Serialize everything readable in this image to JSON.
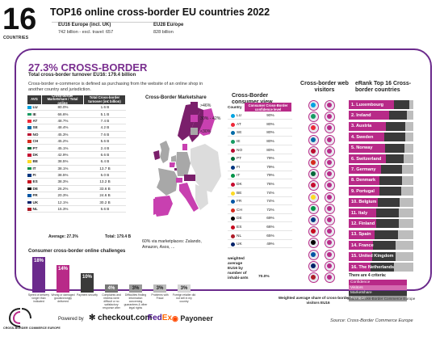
{
  "header": {
    "big_number": "16",
    "countries_label": "COUNTRIES",
    "title": "TOP16 online cross-border EU countries 2022",
    "eu16_label": "EU16 Europe (incl. UK)",
    "eu16_value": "742 billion - excl. travel: 657",
    "eu28_label": "EU28 Europe",
    "eu28_value": "828 billion"
  },
  "summary": {
    "title": "27.3% CROSS-BORDER",
    "subtitle": "Total cross-border turnover EU16:   179.4 billion",
    "description": "Cross-border e-commerce is defined as purchasing from the website of an online shop in another country and jurisdiction."
  },
  "turnover_table": {
    "col_country": "AVG",
    "col_share": "Cross-border Marketshare / Total online",
    "col_turnover": "Total Cross-border turnover (in€ billion)",
    "rows": [
      {
        "country": "LU",
        "share": "80.0%",
        "turnover": "1.6 B",
        "color": "#00a3e0"
      },
      {
        "country": "IE",
        "share": "66.6%",
        "turnover": "5.1 B",
        "color": "#169b62"
      },
      {
        "country": "AT",
        "share": "48.7%",
        "turnover": "7.4 B",
        "color": "#ed2939"
      },
      {
        "country": "SE",
        "share": "48.4%",
        "turnover": "4.2 B",
        "color": "#006aa7"
      },
      {
        "country": "NO",
        "share": "45.3%",
        "turnover": "7.6 B",
        "color": "#ba0c2f"
      },
      {
        "country": "CH",
        "share": "45.2%",
        "turnover": "5.6 B",
        "color": "#d52b1e"
      },
      {
        "country": "PT",
        "share": "45.1%",
        "turnover": "2.4 B",
        "color": "#046a38"
      },
      {
        "country": "DK",
        "share": "42.9%",
        "turnover": "6.6 B",
        "color": "#c60c30"
      },
      {
        "country": "BE",
        "share": "38.5%",
        "turnover": "6.4 B",
        "color": "#fdda24"
      },
      {
        "country": "IT",
        "share": "38.1%",
        "turnover": "13.7 B",
        "color": "#009246"
      },
      {
        "country": "FI",
        "share": "38.5%",
        "turnover": "5.0 B",
        "color": "#003580"
      },
      {
        "country": "ES",
        "share": "38.3%",
        "turnover": "13.2 B",
        "color": "#c60b1e"
      },
      {
        "country": "DE",
        "share": "26.2%",
        "turnover": "33.6 B",
        "color": "#000000"
      },
      {
        "country": "FR",
        "share": "20.3%",
        "turnover": "24.6 B",
        "color": "#0055a4"
      },
      {
        "country": "UK",
        "share": "12.1%",
        "turnover": "30.2 B",
        "color": "#012169"
      },
      {
        "country": "NL",
        "share": "15.3%",
        "turnover": "5.6 B",
        "color": "#ae1c28"
      }
    ],
    "average": "Average: 27.3%",
    "total": "Total:   179.4 B"
  },
  "map": {
    "title": "Cross-Border Marketshare",
    "legend": [
      {
        "label": ">46%",
        "color": "#7a1f6b"
      },
      {
        "label": "30% - 42%",
        "color": "#c840b0"
      },
      {
        "label": "<30%",
        "color": "#a8a8a8"
      }
    ],
    "note": "60% via marketplaces: Zalando, Amazon, Asos, ..."
  },
  "consumer_view": {
    "title": "Cross-Border consumer view",
    "col_country": "Country",
    "col_value": "Consumer Cross-Border confidence level",
    "rows": [
      {
        "country": "LU",
        "value": "90%",
        "color": "#00a3e0"
      },
      {
        "country": "AT",
        "value": "80%",
        "color": "#ed2939"
      },
      {
        "country": "SE",
        "value": "80%",
        "color": "#006aa7"
      },
      {
        "country": "IE",
        "value": "80%",
        "color": "#169b62"
      },
      {
        "country": "NO",
        "value": "80%",
        "color": "#ba0c2f"
      },
      {
        "country": "PT",
        "value": "79%",
        "color": "#046a38"
      },
      {
        "country": "FI",
        "value": "79%",
        "color": "#003580"
      },
      {
        "country": "IT",
        "value": "79%",
        "color": "#009246"
      },
      {
        "country": "DK",
        "value": "76%",
        "color": "#c60c30"
      },
      {
        "country": "BE",
        "value": "74%",
        "color": "#fdda24"
      },
      {
        "country": "FR",
        "value": "74%",
        "color": "#0055a4"
      },
      {
        "country": "CH",
        "value": "72%",
        "color": "#d52b1e"
      },
      {
        "country": "DE",
        "value": "69%",
        "color": "#000000"
      },
      {
        "country": "ES",
        "value": "66%",
        "color": "#c60b1e"
      },
      {
        "country": "NL",
        "value": "65%",
        "color": "#ae1c28"
      },
      {
        "country": "UK",
        "value": "49%",
        "color": "#012169"
      }
    ],
    "weighted_label": "weighted average EU16 by number of inhabi-ants",
    "weighted_value": "70.0%"
  },
  "visitors": {
    "title": "Cross-border web visitors",
    "note": "Weighted average share of cross-border web visitors EU16",
    "dots": [
      {
        "color": "#00a3e0"
      },
      {
        "color": "#b82a88"
      },
      {
        "color": "#169b62"
      },
      {
        "color": "#b82a88"
      },
      {
        "color": "#ed2939"
      },
      {
        "color": "#b82a88"
      },
      {
        "color": "#006aa7"
      },
      {
        "color": "#b82a88"
      },
      {
        "color": "#ba0c2f"
      },
      {
        "color": "#b82a88"
      },
      {
        "color": "#d52b1e"
      },
      {
        "color": "#b82a88"
      },
      {
        "color": "#046a38"
      },
      {
        "color": "#b82a88"
      },
      {
        "color": "#c60c30"
      },
      {
        "color": "#b82a88"
      },
      {
        "color": "#fdda24"
      },
      {
        "color": "#b82a88"
      },
      {
        "color": "#009246"
      },
      {
        "color": "#b82a88"
      },
      {
        "color": "#003580"
      },
      {
        "color": "#b82a88"
      },
      {
        "color": "#c60b1e"
      },
      {
        "color": "#b82a88"
      },
      {
        "color": "#000000"
      },
      {
        "color": "#b82a88"
      },
      {
        "color": "#0055a4"
      },
      {
        "color": "#b82a88"
      },
      {
        "color": "#012169"
      },
      {
        "color": "#b82a88"
      },
      {
        "color": "#ae1c28"
      },
      {
        "color": "#b82a88"
      }
    ]
  },
  "top16": {
    "title": "eRank Top 16 Cross-border countries",
    "items": [
      {
        "label": "1. Luxembourg",
        "pink": 0.7,
        "dark": 0.24
      },
      {
        "label": "2. Ireland",
        "pink": 0.62,
        "dark": 0.28
      },
      {
        "label": "3. Austria",
        "pink": 0.58,
        "dark": 0.3
      },
      {
        "label": "4. Sweden",
        "pink": 0.55,
        "dark": 0.32
      },
      {
        "label": "5. Norway",
        "pink": 0.56,
        "dark": 0.3
      },
      {
        "label": "6. Switzerland",
        "pink": 0.57,
        "dark": 0.28
      },
      {
        "label": "7. Germany",
        "pink": 0.5,
        "dark": 0.33
      },
      {
        "label": "8. Denmark",
        "pink": 0.47,
        "dark": 0.35
      },
      {
        "label": "9. Portugal",
        "pink": 0.48,
        "dark": 0.33
      },
      {
        "label": "10. Belgium",
        "pink": 0.45,
        "dark": 0.34
      },
      {
        "label": "11. Italy",
        "pink": 0.42,
        "dark": 0.36
      },
      {
        "label": "12. Finland",
        "pink": 0.42,
        "dark": 0.35
      },
      {
        "label": "13. Spain",
        "pink": 0.4,
        "dark": 0.36
      },
      {
        "label": "14. France",
        "pink": 0.38,
        "dark": 0.35
      },
      {
        "label": "15. United Kingdom",
        "pink": 0.36,
        "dark": 0.36
      },
      {
        "label": "16. The Netherlands",
        "pink": 0.34,
        "dark": 0.36
      }
    ],
    "criteria_title": "There are 4 criteria:",
    "criteria": [
      {
        "label": "Confidence",
        "color": "#b82a88"
      },
      {
        "label": "Visitors",
        "color": "#d46ab0"
      },
      {
        "label": "Marketshare",
        "color": "#3a3a3a"
      },
      {
        "label": "Turnover",
        "color": "#9a9a9a"
      }
    ],
    "source": "Source: Cross-Border Commerce Europe"
  },
  "challenges": {
    "title": "Consumer cross-border online challenges",
    "items": [
      {
        "pct": "18%",
        "value": 18,
        "color": "#6b2a8c",
        "label": "Speed of delivery longer than indicated"
      },
      {
        "pct": "14%",
        "value": 14,
        "color": "#b82a88",
        "label": "Wrong or damaged goods/wrongly delivered"
      },
      {
        "pct": "10%",
        "value": 10,
        "color": "#3a3a3a",
        "label": "Payment security"
      },
      {
        "pct": "4%",
        "value": 4,
        "color": "#777777",
        "label": "Complaints and redress were difficult or no satisfactory response after"
      },
      {
        "pct": "3%",
        "value": 3,
        "color": "#9a9a9a",
        "label": "Difficulties finding information concerning guarantees & other legal rights"
      },
      {
        "pct": "3%",
        "value": 3,
        "color": "#bbbbbb",
        "label": "Problems with Fraud"
      },
      {
        "pct": "3%",
        "value": 3,
        "color": "#d5d5d5",
        "label": "Foreign retailer did not sell in my country"
      }
    ]
  },
  "footer": {
    "logo_text": "CROSS-BORDER COMMERCE EUROPE",
    "powered_by": "Powered by",
    "checkout": "checkout.com",
    "fedex_a": "Fed",
    "fedex_b": "Ex",
    "payoneer": "Payoneer",
    "source": "Source: Cross-Border Commerce Europe"
  }
}
